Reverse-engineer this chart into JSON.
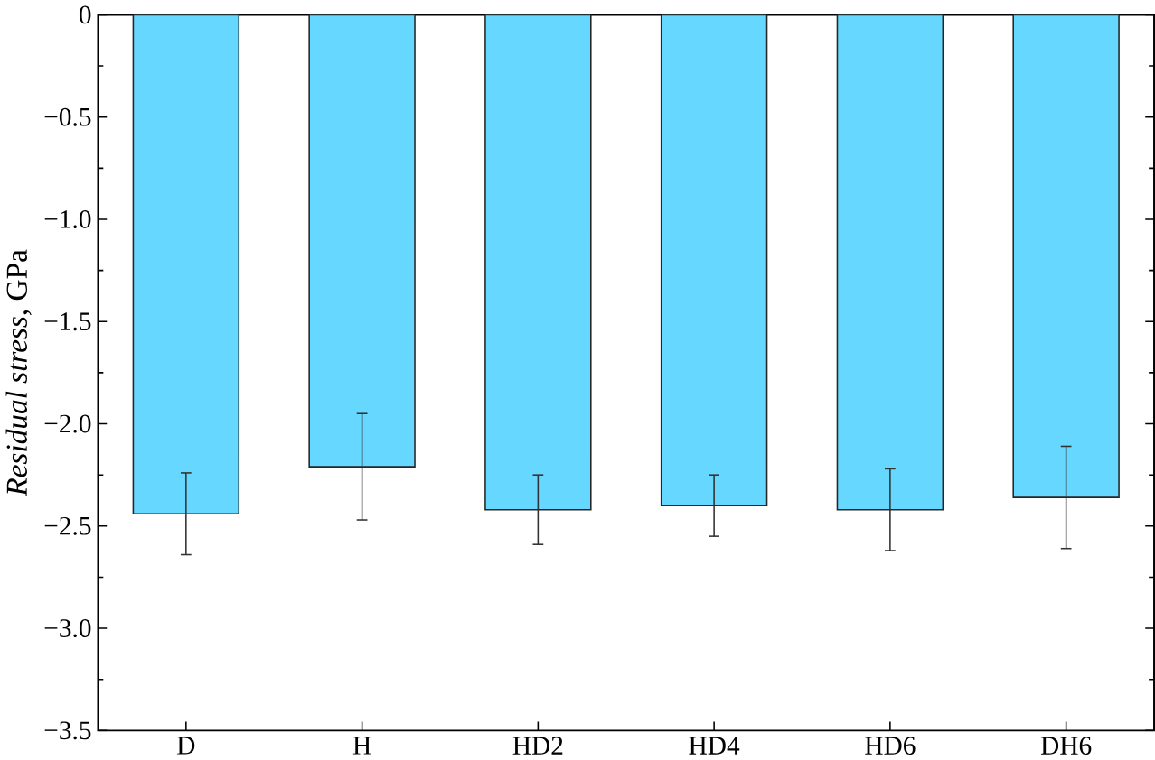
{
  "chart_data": {
    "type": "bar",
    "ylabel": "*Residual stress*, GPa",
    "categories": [
      "D",
      "H",
      "HD2",
      "HD4",
      "HD6",
      "DH6"
    ],
    "values": [
      -2.44,
      -2.21,
      -2.42,
      -2.4,
      -2.42,
      -2.36
    ],
    "errors": [
      0.2,
      0.26,
      0.17,
      0.15,
      0.2,
      0.25
    ],
    "color": "#66d7ff",
    "ylim": [
      -3.5,
      0
    ],
    "yticks": [
      {
        "value": -3.5,
        "label": "−3.5"
      },
      {
        "value": -3.0,
        "label": "−3.0"
      },
      {
        "value": -2.5,
        "label": "−2.5"
      },
      {
        "value": -2.0,
        "label": "−2.0"
      },
      {
        "value": -1.5,
        "label": "−1.5"
      },
      {
        "value": -1.0,
        "label": "−1.0"
      },
      {
        "value": -0.5,
        "label": "−0.5"
      },
      0
    ],
    "grid": false
  }
}
